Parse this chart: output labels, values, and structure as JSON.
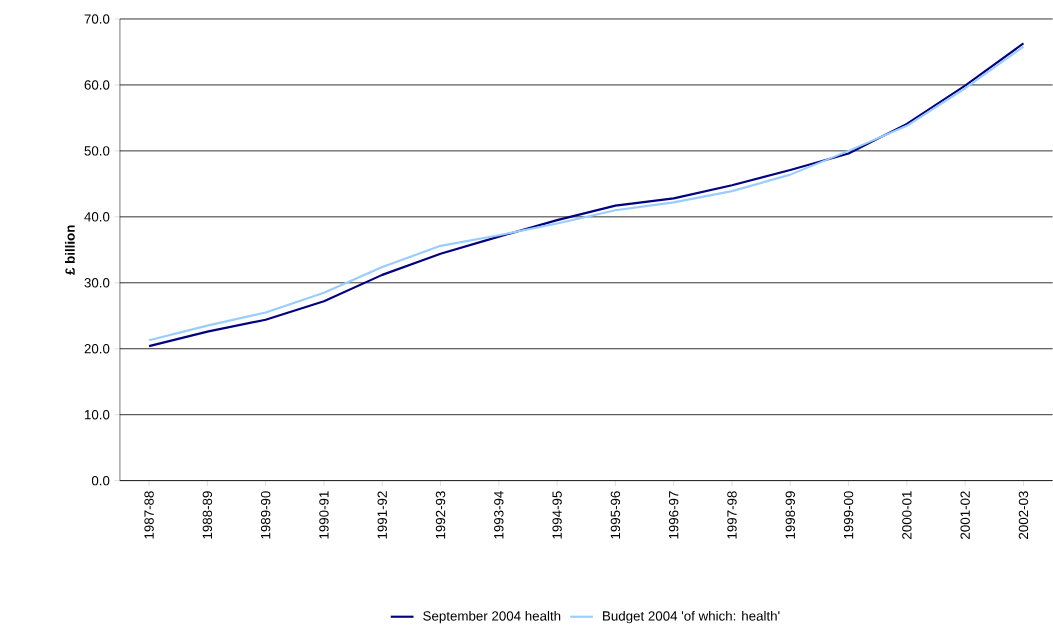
{
  "chart_data": {
    "type": "line",
    "ylabel": "£ billion",
    "categories": [
      "1987-88",
      "1988-89",
      "1989-90",
      "1990-91",
      "1991-92",
      "1992-93",
      "1993-94",
      "1994-95",
      "1995-96",
      "1996-97",
      "1997-98",
      "1998-99",
      "1999-00",
      "2000-01",
      "2001-02",
      "2002-03"
    ],
    "series": [
      {
        "name": "September 2004 health",
        "color": "#000080",
        "values": [
          20.4,
          22.6,
          24.4,
          27.2,
          31.2,
          34.4,
          37.0,
          39.5,
          41.7,
          42.8,
          44.8,
          47.1,
          49.6,
          54.1,
          59.9,
          66.3
        ]
      },
      {
        "name": "Budget 2004 'of which: health'",
        "color": "#99ccff",
        "values": [
          21.3,
          23.5,
          25.5,
          28.5,
          32.4,
          35.6,
          37.2,
          39.0,
          41.0,
          42.2,
          43.9,
          46.4,
          50.0,
          53.8,
          59.5,
          65.8
        ]
      }
    ],
    "ylim": [
      0,
      70
    ],
    "yticks": [
      {
        "value": 0,
        "label": "0.0"
      },
      {
        "value": 10,
        "label": "10.0"
      },
      {
        "value": 20,
        "label": "20.0"
      },
      {
        "value": 30,
        "label": "30.0"
      },
      {
        "value": 40,
        "label": "40.0"
      },
      {
        "value": 50,
        "label": "50.0"
      },
      {
        "value": 60,
        "label": "60.0"
      },
      {
        "value": 70,
        "label": "70.0"
      }
    ],
    "grid": "y",
    "legend": "bottom",
    "marker": "none",
    "line_style": "solid"
  }
}
